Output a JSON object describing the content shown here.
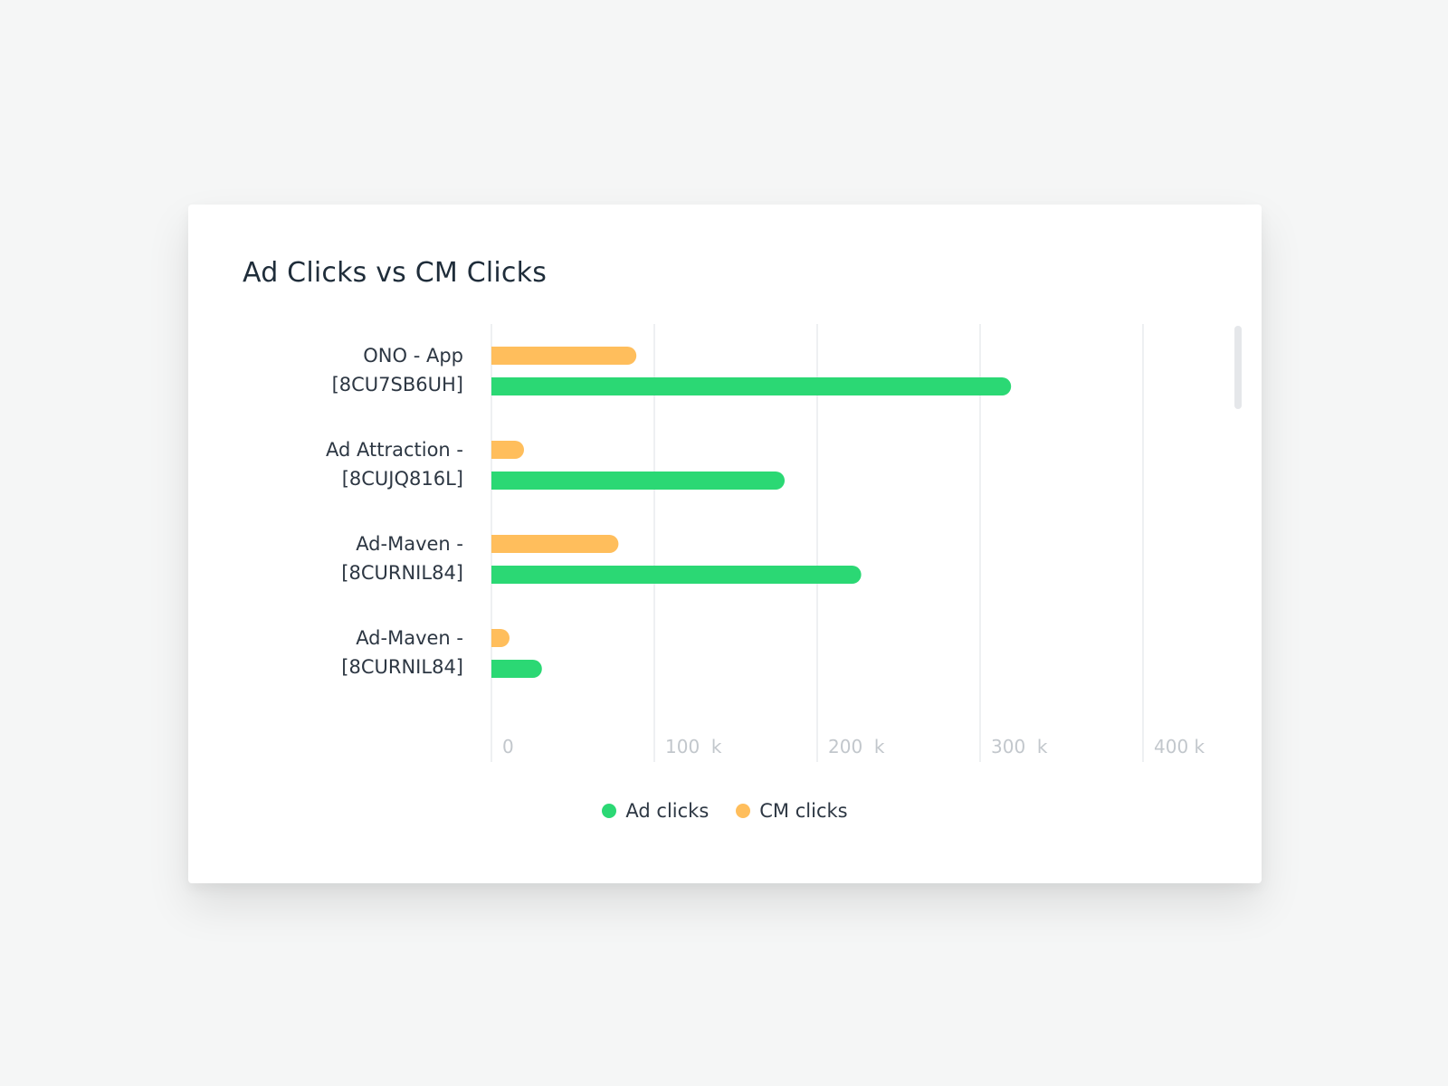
{
  "colors": {
    "ad_clicks": "#2bd874",
    "cm_clicks": "#ffbe5c",
    "grid": "#eef0f2",
    "background": "#f5f6f6",
    "card": "#ffffff"
  },
  "chart_data": {
    "type": "bar",
    "orientation": "horizontal",
    "title": "Ad Clicks vs CM Clicks",
    "categories": [
      [
        "ONO - App",
        "[8CU7SB6UH]"
      ],
      [
        "Ad Attraction -",
        "[8CUJQ816L]"
      ],
      [
        "Ad-Maven -",
        "[8CURNIL84]"
      ],
      [
        "Ad-Maven -",
        "[8CURNIL84]"
      ]
    ],
    "series": [
      {
        "name": "CM clicks",
        "color": "#ffbe5c",
        "values": [
          89000,
          20000,
          78000,
          9000
        ]
      },
      {
        "name": "Ad clicks",
        "color": "#2bd874",
        "values": [
          319000,
          180000,
          227000,
          31000
        ]
      }
    ],
    "xticks": [
      {
        "value": 0,
        "label": "0"
      },
      {
        "value": 100000,
        "label": "100  k"
      },
      {
        "value": 200000,
        "label": "200  k"
      },
      {
        "value": 300000,
        "label": "300  k"
      },
      {
        "value": 400000,
        "label": "400 k"
      }
    ],
    "xlim": [
      0,
      400000
    ],
    "grid": true,
    "legend_placement": "bottom-center"
  },
  "legend": [
    {
      "label": "Ad clicks",
      "color": "#2bd874"
    },
    {
      "label": "CM clicks",
      "color": "#ffbe5c"
    }
  ]
}
